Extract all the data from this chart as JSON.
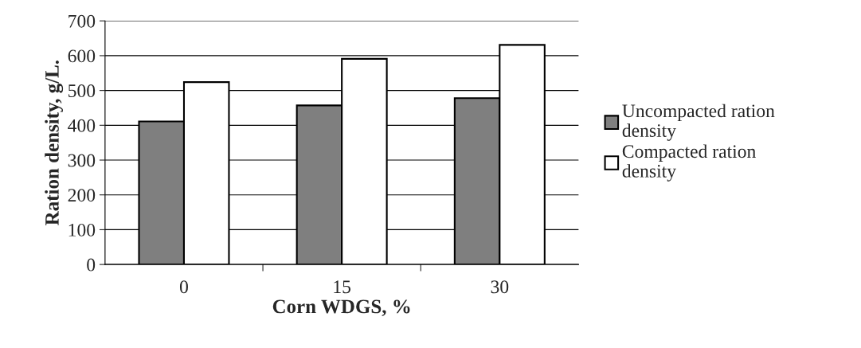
{
  "chart_data": {
    "type": "bar",
    "xlabel": "Corn WDGS, %",
    "ylabel": "Ration density, g/L.",
    "categories": [
      "0",
      "15",
      "30"
    ],
    "series": [
      {
        "name": "Uncompacted ration density",
        "color": "#7f7f7f",
        "values": [
          411,
          457,
          478
        ]
      },
      {
        "name": "Compacted ration density",
        "color": "#ffffff",
        "values": [
          524,
          591,
          631
        ]
      }
    ],
    "ylim": [
      0,
      700
    ],
    "yticks": [
      0,
      100,
      200,
      300,
      400,
      500,
      600,
      700
    ],
    "grid": "y",
    "legend": "right"
  }
}
